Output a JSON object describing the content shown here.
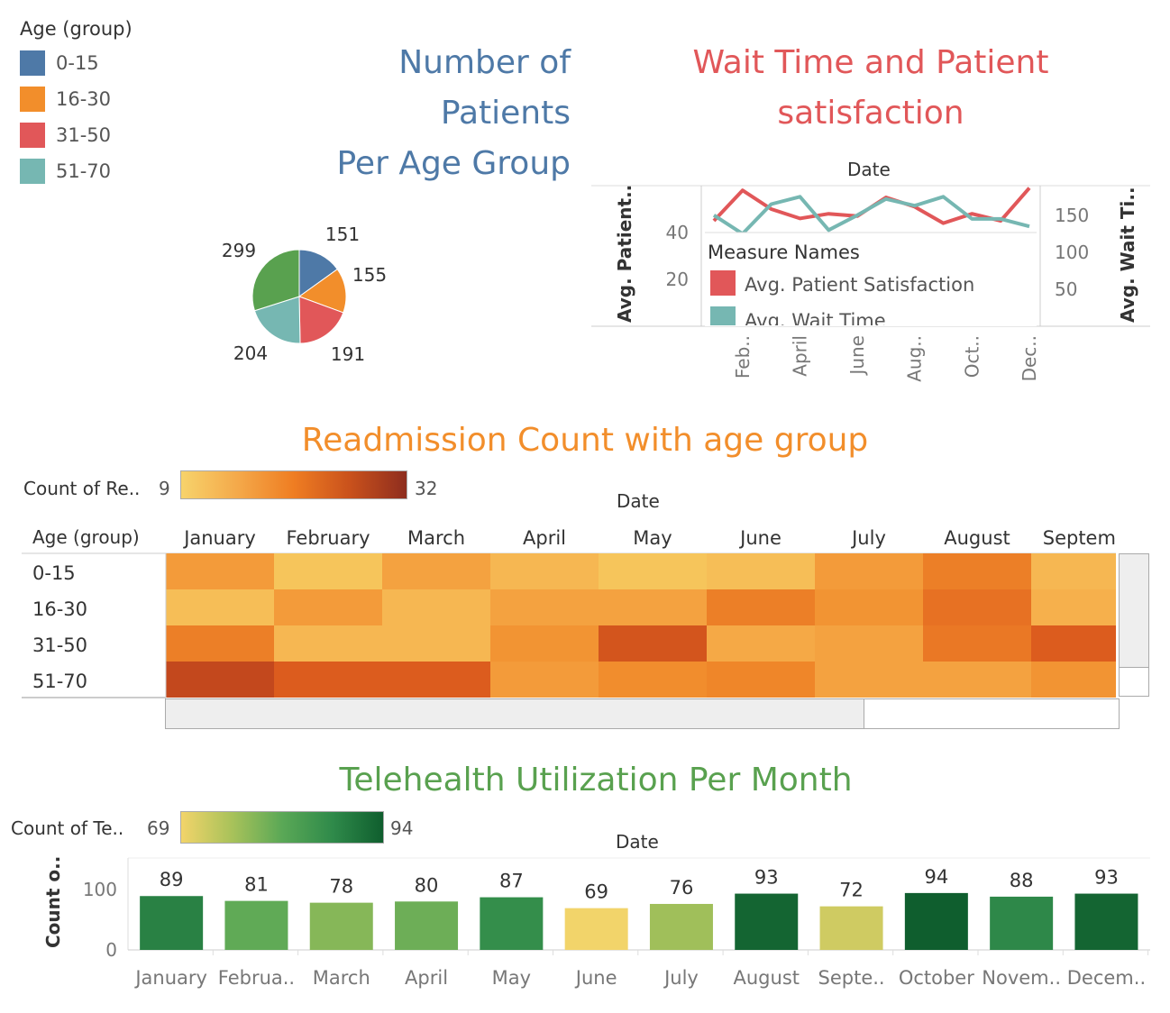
{
  "legend": {
    "title": "Age (group)",
    "items": [
      {
        "label": "0-15",
        "color": "#4e79a7"
      },
      {
        "label": "16-30",
        "color": "#f28e2b"
      },
      {
        "label": "31-50",
        "color": "#e15759"
      },
      {
        "label": "51-70",
        "color": "#76b7b2"
      }
    ]
  },
  "titles": {
    "patients_line1": "Number of",
    "patients_line2": "Patients",
    "patients_line3": "Per Age Group",
    "wait_line1": "Wait Time and Patient",
    "wait_line2": "satisfaction",
    "readmission": "Readmission Count with age group",
    "telehealth": "Telehealth Utilization Per Month"
  },
  "wait_chart": {
    "header": "Date",
    "left_axis_title": "Avg. Patient..",
    "right_axis_title": "Avg. Wait Ti..",
    "legend_title": "Measure Names",
    "legend_item1": "Avg. Patient Satisfaction",
    "legend_item2": "Avg. Wait Time"
  },
  "readmission_legend": {
    "label": "Count of Re..",
    "min": "9",
    "max": "32"
  },
  "readmission_header": "Date",
  "readmission_row_header": "Age (group)",
  "telehealth_legend": {
    "label": "Count of Te..",
    "min": "69",
    "max": "94"
  },
  "telehealth_header": "Date",
  "telehealth_axis_title": "Count o..",
  "colors": {
    "blue_title": "#4e79a7",
    "red_title": "#e15759",
    "orange_title": "#f28e2b",
    "green_title": "#59a14f"
  },
  "chart_data": [
    {
      "type": "pie",
      "title": "Number of Patients Per Age Group",
      "categories": [
        "0-15",
        "16-30",
        "31-50",
        "51-70",
        "unlabeled"
      ],
      "values": [
        151,
        155,
        191,
        204,
        299
      ],
      "colors": [
        "#4e79a7",
        "#f28e2b",
        "#e15759",
        "#76b7b2",
        "#59a14f"
      ]
    },
    {
      "type": "line",
      "title": "Wait Time and Patient satisfaction",
      "x": [
        "January",
        "February",
        "March",
        "April",
        "May",
        "June",
        "July",
        "August",
        "September",
        "October",
        "November",
        "December"
      ],
      "x_tick_labels": [
        "Feb..",
        "April",
        "June",
        "Aug..",
        "Oct..",
        "Dec.."
      ],
      "series": [
        {
          "name": "Avg. Patient Satisfaction",
          "axis": "left",
          "color": "#e15759",
          "values": [
            45,
            58,
            50,
            46,
            48,
            47,
            55,
            51,
            44,
            48,
            45,
            59
          ]
        },
        {
          "name": "Avg. Wait Time",
          "axis": "right",
          "color": "#76b7b2",
          "values": [
            150,
            125,
            165,
            175,
            130,
            150,
            172,
            163,
            175,
            145,
            145,
            135
          ]
        }
      ],
      "left_ylim": [
        0,
        60
      ],
      "left_ticks": [
        "20",
        "40"
      ],
      "right_ylim": [
        0,
        190
      ],
      "right_ticks": [
        "50",
        "100",
        "150"
      ]
    },
    {
      "type": "heatmap",
      "title": "Readmission Count with age group",
      "columns": [
        "January",
        "February",
        "March",
        "April",
        "May",
        "June",
        "July",
        "August",
        "Septemb"
      ],
      "rows": [
        "0-15",
        "16-30",
        "31-50",
        "51-70"
      ],
      "values": [
        [
          18,
          12,
          17,
          14,
          12,
          13,
          18,
          22,
          14
        ],
        [
          13,
          18,
          14,
          17,
          17,
          22,
          19,
          24,
          15
        ],
        [
          22,
          14,
          14,
          19,
          28,
          16,
          17,
          23,
          27
        ],
        [
          30,
          27,
          27,
          18,
          20,
          21,
          17,
          17,
          19
        ]
      ],
      "min": 9,
      "max": 32
    },
    {
      "type": "bar",
      "title": "Telehealth Utilization Per Month",
      "categories": [
        "January",
        "Februa..",
        "March",
        "April",
        "May",
        "June",
        "July",
        "August",
        "Septe..",
        "October",
        "Novem..",
        "Decem.."
      ],
      "values": [
        89,
        81,
        78,
        80,
        87,
        69,
        76,
        93,
        72,
        94,
        88,
        93
      ],
      "ylim": [
        0,
        140
      ],
      "y_ticks": [
        "0",
        "100"
      ],
      "color_min": 69,
      "color_max": 94
    }
  ]
}
